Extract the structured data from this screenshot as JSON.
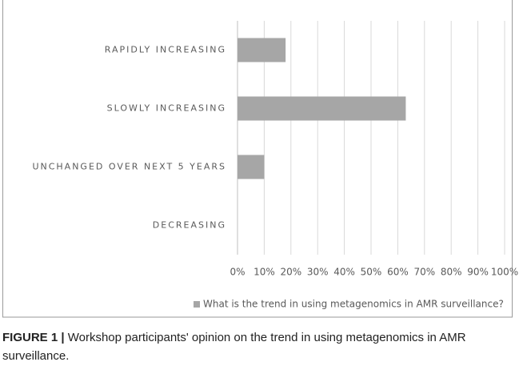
{
  "chart_data": {
    "type": "hbar",
    "categories": [
      "RAPIDLY INCREASING",
      "SLOWLY INCREASING",
      "UNCHANGED OVER NEXT 5 YEARS",
      "DECREASING"
    ],
    "series": [
      {
        "name": "What is the trend in using metagenomics in AMR surveillance?",
        "color": "#a6a6a6",
        "values": [
          18,
          63,
          10,
          0
        ]
      }
    ],
    "xlim": [
      0,
      100
    ],
    "xticks": [
      {
        "value": 0,
        "label": "0%"
      },
      {
        "value": 10,
        "label": "10%"
      },
      {
        "value": 20,
        "label": "20%"
      },
      {
        "value": 30,
        "label": "30%"
      },
      {
        "value": 40,
        "label": "40%"
      },
      {
        "value": 50,
        "label": "50%"
      },
      {
        "value": 60,
        "label": "60%"
      },
      {
        "value": 70,
        "label": "70%"
      },
      {
        "value": 80,
        "label": "80%"
      },
      {
        "value": 90,
        "label": "90%"
      },
      {
        "value": 100,
        "label": "100%"
      }
    ],
    "grid": true,
    "legend": "bottom"
  },
  "caption": {
    "label": "FIGURE 1 |",
    "text": "Workshop participants' opinion on the trend in using metagenomics in AMR surveillance."
  }
}
